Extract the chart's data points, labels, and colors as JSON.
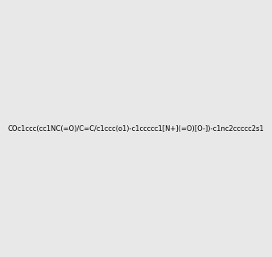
{
  "smiles": "COc1ccc(cc1NC(=O)/C=C/c1ccc(o1)-c1ccccc1[N+](=O)[O-])-c1nc2ccccc2s1",
  "image_size": 300,
  "background_color": "#e8e8e8",
  "atom_colors": {
    "N": "#0000ff",
    "O": "#ff0000",
    "S": "#cccc00",
    "C": "#000000"
  }
}
